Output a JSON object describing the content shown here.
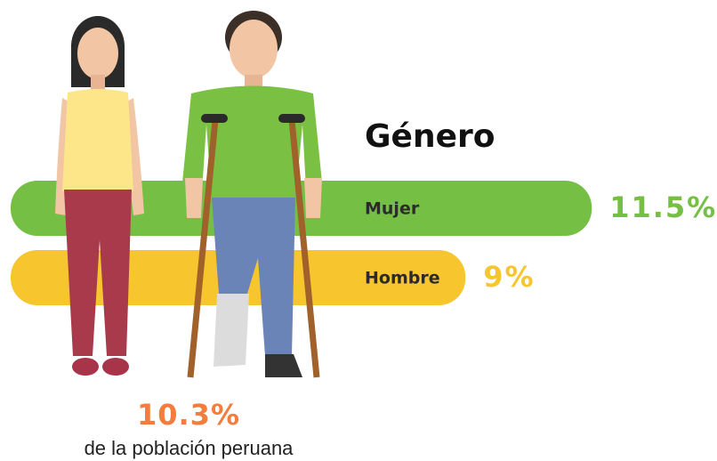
{
  "chart_data": {
    "type": "bar",
    "orientation": "horizontal",
    "title": "Género",
    "categories": [
      "Mujer",
      "Hombre"
    ],
    "values": [
      11.5,
      9
    ],
    "value_labels": [
      "11.5%",
      "9%"
    ],
    "colors": [
      "#74bf44",
      "#f7c52e"
    ],
    "annotations": [
      "10.3%",
      "de la población peruana"
    ]
  }
}
